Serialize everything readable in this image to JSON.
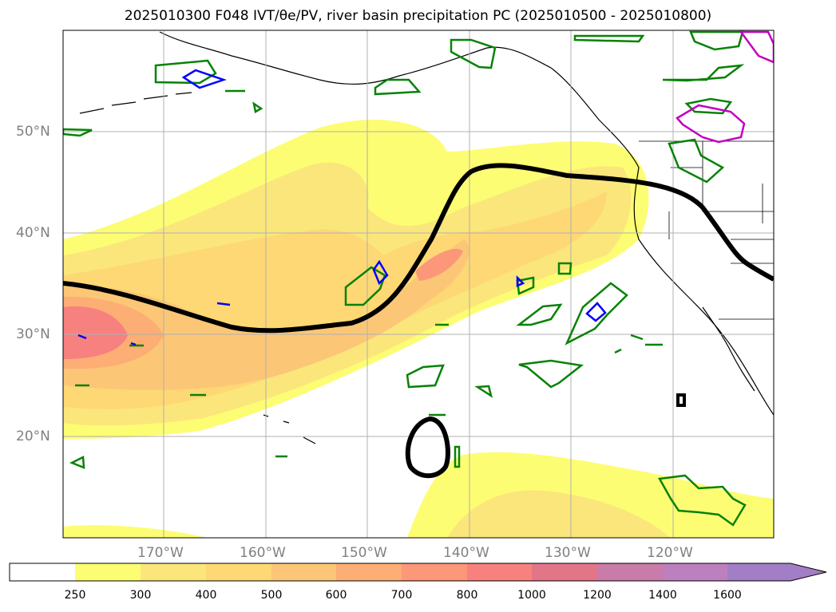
{
  "title": "2025010300 F048 IVT/θe/PV, river basin precipitation PC (2025010500 - 2025010800)",
  "map": {
    "lat_labels": [
      "50°N",
      "40°N",
      "30°N",
      "20°N"
    ],
    "lon_labels": [
      "170°W",
      "160°W",
      "150°W",
      "140°W",
      "130°W",
      "120°W"
    ]
  },
  "colorbar": {
    "levels": [
      "250",
      "300",
      "400",
      "500",
      "600",
      "700",
      "800",
      "1000",
      "1200",
      "1400",
      "1600"
    ],
    "colors": [
      "#ffffff",
      "#fdfd73",
      "#fbe67c",
      "#fdd874",
      "#fcc677",
      "#fcae74",
      "#fc9779",
      "#f7817f",
      "#e27588",
      "#c97ba9",
      "#bd80bf",
      "#a17ec6"
    ],
    "extend": "max"
  },
  "contour_colors": {
    "pv_black": "#000000",
    "green": "#078207",
    "blue": "#0000ff",
    "magenta": "#c300c3"
  }
}
